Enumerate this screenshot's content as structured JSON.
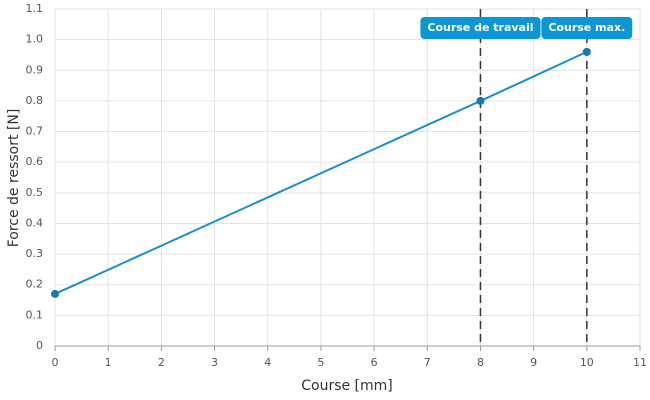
{
  "chart_data": {
    "type": "line",
    "x_label": "Course [mm]",
    "y_label": "Force de ressort [N]",
    "x": [
      0,
      8,
      10
    ],
    "series": [
      {
        "color": "#1a8fca",
        "values": [
          0.17,
          0.8,
          0.96
        ]
      }
    ],
    "xlim": [
      0,
      11
    ],
    "xticks": [
      0,
      1,
      2,
      3,
      4,
      5,
      6,
      7,
      8,
      9,
      10,
      11
    ],
    "ylim": [
      0,
      1.1
    ],
    "yticks": [
      0,
      0.1,
      0.2,
      0.3,
      0.4,
      0.5,
      0.6,
      0.7,
      0.8,
      0.9,
      {
        "value": 1.0,
        "label": "1.0"
      },
      1.1
    ],
    "grid": true,
    "annotations": [
      {
        "x": 8,
        "label": "Course de travail"
      },
      {
        "x": 10,
        "label": "Course max."
      }
    ]
  }
}
